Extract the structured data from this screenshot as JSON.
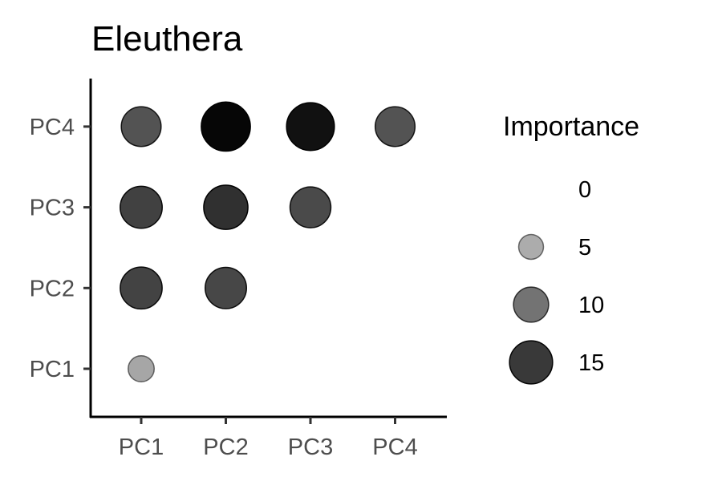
{
  "chart_data": {
    "type": "scatter",
    "title": "Eleuthera",
    "x_categories": [
      "PC1",
      "PC2",
      "PC3",
      "PC4"
    ],
    "y_categories": [
      "PC1",
      "PC2",
      "PC3",
      "PC4"
    ],
    "xlabel": "",
    "ylabel": "",
    "points": [
      {
        "x": "PC1",
        "y": "PC1",
        "importance": 5.5
      },
      {
        "x": "PC1",
        "y": "PC2",
        "importance": 14.2
      },
      {
        "x": "PC2",
        "y": "PC2",
        "importance": 13.8
      },
      {
        "x": "PC1",
        "y": "PC3",
        "importance": 14.3
      },
      {
        "x": "PC2",
        "y": "PC3",
        "importance": 15.8
      },
      {
        "x": "PC3",
        "y": "PC3",
        "importance": 13.5
      },
      {
        "x": "PC1",
        "y": "PC4",
        "importance": 12.8
      },
      {
        "x": "PC2",
        "y": "PC4",
        "importance": 19.5
      },
      {
        "x": "PC3",
        "y": "PC4",
        "importance": 18.5
      },
      {
        "x": "PC4",
        "y": "PC4",
        "importance": 12.8
      }
    ],
    "legend": {
      "title": "Importance",
      "position": "right",
      "entries": [
        {
          "label": "0",
          "value": 0
        },
        {
          "label": "5",
          "value": 5
        },
        {
          "label": "10",
          "value": 10
        },
        {
          "label": "15",
          "value": 15
        }
      ]
    },
    "encoding": {
      "size": "importance",
      "alpha": "importance",
      "color": "#000000"
    },
    "importance_range": [
      0,
      20
    ],
    "grid": false
  }
}
